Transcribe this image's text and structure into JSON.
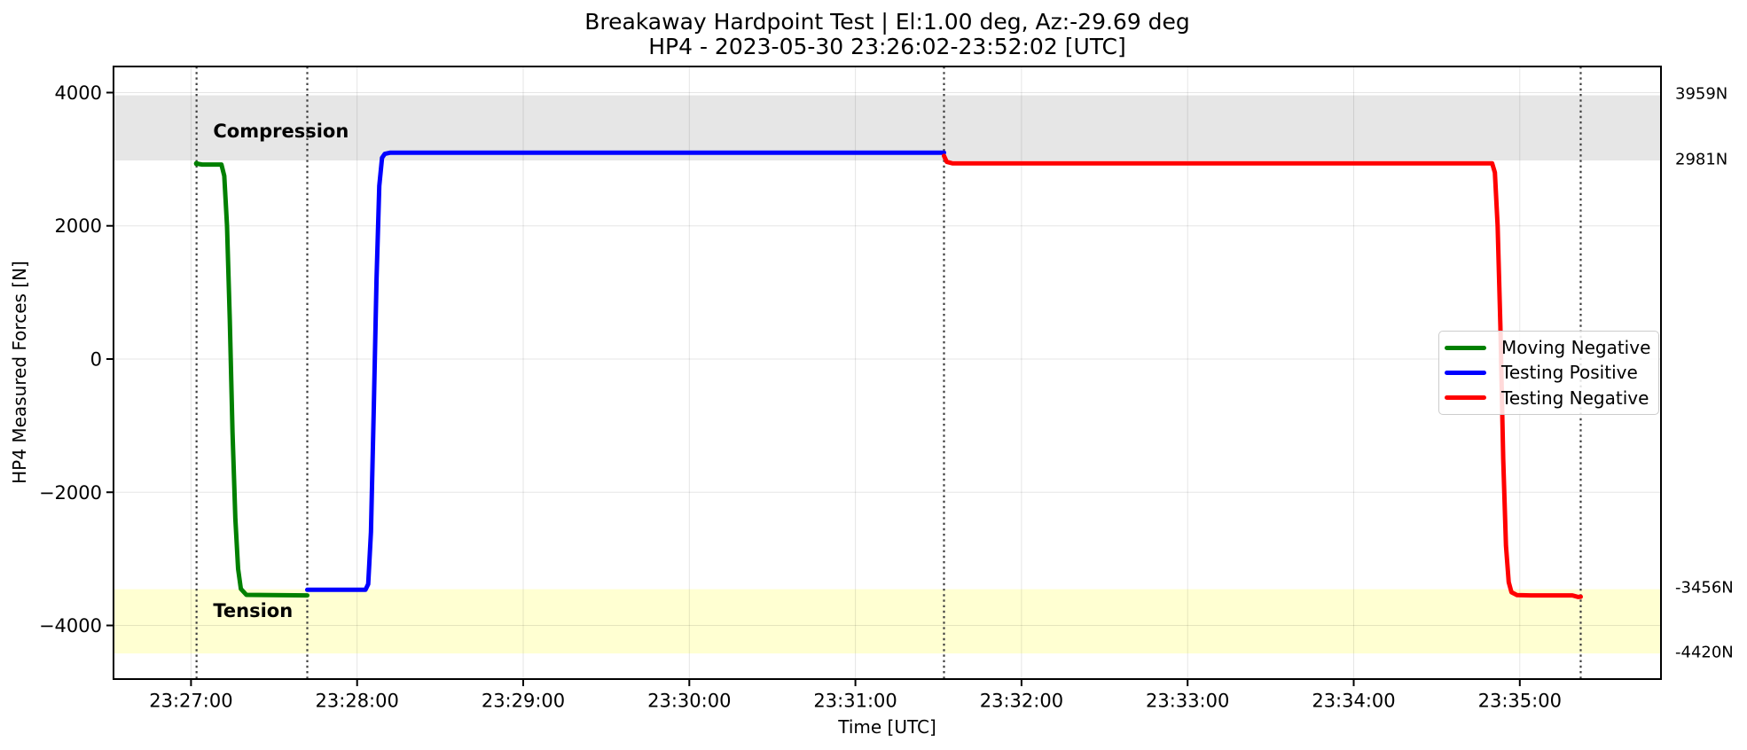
{
  "chart_data": {
    "type": "line",
    "title": "Breakaway Hardpoint Test | El:1.00 deg, Az:-29.69 deg",
    "subtitle": "HP4 - 2023-05-30 23:26:02-23:52:02 [UTC]",
    "xlabel": "Time [UTC]",
    "ylabel": "HP4 Measured Forces [N]",
    "x_axis": {
      "min": "23:26:32",
      "max": "23:35:51",
      "ticks": [
        "23:27:00",
        "23:28:00",
        "23:29:00",
        "23:30:00",
        "23:31:00",
        "23:32:00",
        "23:33:00",
        "23:34:00",
        "23:35:00"
      ]
    },
    "y_axis": {
      "min": -4805,
      "max": 4392,
      "ticks": [
        {
          "value": 4000,
          "label": "4000"
        },
        {
          "value": 2000,
          "label": "2000"
        },
        {
          "value": 0,
          "label": "0"
        },
        {
          "value": -2000,
          "label": "−2000"
        },
        {
          "value": -4000,
          "label": "−4000"
        }
      ]
    },
    "grid": true,
    "bands": [
      {
        "name": "compression",
        "label": "Compression",
        "from": 2981,
        "to": 3959,
        "color": "#e6e6e6",
        "label_x": "23:27:08",
        "label_y": 3420
      },
      {
        "name": "tension",
        "label": "Tension",
        "from": -4420,
        "to": -3456,
        "color": "#ffffd2",
        "label_x": "23:27:08",
        "label_y": -3780
      }
    ],
    "threshold_labels": [
      {
        "text": "3959N",
        "value": 3959
      },
      {
        "text": "2981N",
        "value": 2981
      },
      {
        "text": "-3456N",
        "value": -3456
      },
      {
        "text": "-4420N",
        "value": -4420
      }
    ],
    "event_lines": [
      "23:27:02",
      "23:27:42",
      "23:31:32",
      "23:35:22"
    ],
    "series": [
      {
        "name": "Moving Negative",
        "color": "#008000",
        "points": [
          [
            "23:27:02",
            2935
          ],
          [
            "23:27:04",
            2920
          ],
          [
            "23:27:11",
            2920
          ],
          [
            "23:27:12",
            2750
          ],
          [
            "23:27:13",
            2000
          ],
          [
            "23:27:14",
            600
          ],
          [
            "23:27:15",
            -1100
          ],
          [
            "23:27:16",
            -2400
          ],
          [
            "23:27:17",
            -3150
          ],
          [
            "23:27:18",
            -3450
          ],
          [
            "23:27:20",
            -3540
          ],
          [
            "23:27:42",
            -3548
          ]
        ]
      },
      {
        "name": "Testing Positive",
        "color": "#0000ff",
        "points": [
          [
            "23:27:42",
            -3465
          ],
          [
            "23:28:03",
            -3465
          ],
          [
            "23:28:04",
            -3380
          ],
          [
            "23:28:05",
            -2600
          ],
          [
            "23:28:06",
            -800
          ],
          [
            "23:28:07",
            1200
          ],
          [
            "23:28:08",
            2600
          ],
          [
            "23:28:09",
            3020
          ],
          [
            "23:28:10",
            3080
          ],
          [
            "23:28:12",
            3098
          ],
          [
            "23:31:32",
            3098
          ]
        ]
      },
      {
        "name": "Testing Negative",
        "color": "#ff0000",
        "points": [
          [
            "23:31:32",
            3050
          ],
          [
            "23:31:33",
            2960
          ],
          [
            "23:31:35",
            2938
          ],
          [
            "23:34:50",
            2938
          ],
          [
            "23:34:51",
            2800
          ],
          [
            "23:34:52",
            2000
          ],
          [
            "23:34:53",
            500
          ],
          [
            "23:34:54",
            -1500
          ],
          [
            "23:34:55",
            -2800
          ],
          [
            "23:34:56",
            -3350
          ],
          [
            "23:34:57",
            -3500
          ],
          [
            "23:34:59",
            -3545
          ],
          [
            "23:35:04",
            -3548
          ],
          [
            "23:35:19",
            -3548
          ],
          [
            "23:35:21",
            -3572
          ],
          [
            "23:35:22",
            -3568
          ]
        ]
      }
    ],
    "legend": {
      "position": "center right"
    }
  }
}
